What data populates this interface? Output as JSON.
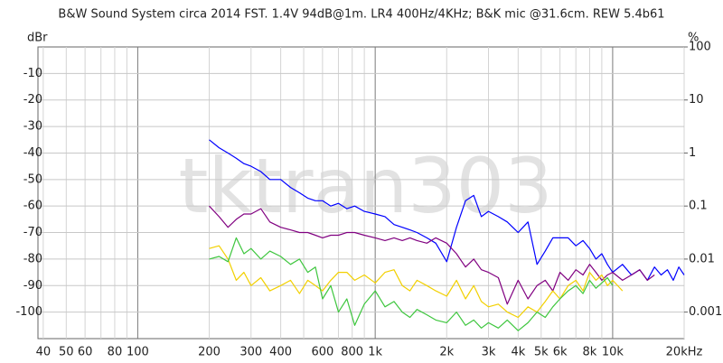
{
  "chart_data": {
    "type": "line",
    "title": "B&W Sound System circa 2014 FST. 1.4V 94dB@1m. LR4 400Hz/4KHz; B&K mic @31.6cm. REW 5.4b61",
    "watermark": "tktran303",
    "y_label": "dBr",
    "y2_label": "%",
    "x_scale": "log",
    "y2_scale": "log",
    "grid": true,
    "xlim": [
      38,
      20000
    ],
    "ylim": [
      -110,
      0
    ],
    "y2lim": [
      0.0003162,
      100
    ],
    "xticks": [
      40,
      50,
      60,
      80,
      100,
      200,
      300,
      400,
      600,
      800,
      {
        "value": 1000,
        "label": "1k"
      },
      {
        "value": 2000,
        "label": "2k"
      },
      {
        "value": 3000,
        "label": "3k"
      },
      {
        "value": 4000,
        "label": "4k"
      },
      {
        "value": 5000,
        "label": "5k"
      },
      {
        "value": 6000,
        "label": "6k"
      },
      {
        "value": 8000,
        "label": "8k"
      },
      {
        "value": 10000,
        "label": "10k"
      },
      {
        "value": 20000,
        "label": "20kHz"
      }
    ],
    "x_minor_grid": [
      70,
      90,
      500,
      700,
      900,
      7000,
      9000
    ],
    "yticks": [
      -10,
      -20,
      -30,
      -40,
      -50,
      -60,
      -70,
      -80,
      -90,
      -100
    ],
    "y2ticks": [
      100,
      10,
      1,
      0.1,
      0.01,
      0.001
    ],
    "x": [
      200,
      220,
      240,
      260,
      280,
      300,
      330,
      360,
      400,
      440,
      480,
      520,
      560,
      600,
      650,
      700,
      760,
      820,
      900,
      1000,
      1100,
      1200,
      1300,
      1400,
      1500,
      1650,
      1800,
      2000,
      2200,
      2400,
      2600,
      2800,
      3000,
      3300,
      3600,
      4000,
      4400,
      4800,
      5200,
      5600,
      6000,
      6500,
      7000,
      7500,
      8000,
      8500,
      9000,
      9500,
      10000,
      11000,
      12000,
      13000,
      14000,
      15000,
      16000,
      17000,
      18000,
      19000,
      20000
    ],
    "series": [
      {
        "color": "#0000ff",
        "values": [
          -35,
          -38,
          -40,
          -42,
          -44,
          -45,
          -47,
          -50,
          -50,
          -53,
          -55,
          -57,
          -58,
          -58,
          -60,
          -59,
          -61,
          -60,
          -62,
          -63,
          -64,
          -67,
          -68,
          -69,
          -70,
          -72,
          -74,
          -81,
          -68,
          -58,
          -56,
          -64,
          -62,
          -64,
          -66,
          -70,
          -66,
          -82,
          -77,
          -72,
          -72,
          -72,
          -75,
          -73,
          -76,
          -80,
          -78,
          -82,
          -85,
          -82,
          -86,
          -84,
          -88,
          -83,
          -86,
          -84,
          -88,
          -83,
          -86
        ]
      },
      {
        "color": "#800080",
        "values": [
          -60,
          -64,
          -68,
          -65,
          -63,
          -63,
          -61,
          -66,
          -68,
          -69,
          -70,
          -70,
          -71,
          -72,
          -71,
          -71,
          -70,
          -70,
          -71,
          -72,
          -73,
          -72,
          -73,
          -72,
          -73,
          -74,
          -72,
          -74,
          -78,
          -83,
          -80,
          -84,
          -85,
          -87,
          -97,
          -88,
          -95,
          -90,
          -88,
          -92,
          -85,
          -88,
          -84,
          -86,
          -82,
          -85,
          -88,
          -86,
          -85,
          -88,
          -86,
          -84,
          -88,
          -86,
          null,
          null,
          null,
          null,
          null
        ]
      },
      {
        "color": "#f2d000",
        "values": [
          -76,
          -75,
          -80,
          -88,
          -85,
          -90,
          -87,
          -92,
          -90,
          -88,
          -93,
          -88,
          -90,
          -92,
          -88,
          -85,
          -85,
          -88,
          -86,
          -89,
          -85,
          -84,
          -90,
          -92,
          -88,
          -90,
          -92,
          -94,
          -88,
          -95,
          -90,
          -96,
          -98,
          -97,
          -100,
          -102,
          -98,
          -100,
          -96,
          -92,
          -95,
          -90,
          -88,
          -92,
          -85,
          -88,
          -86,
          -90,
          -88,
          -92,
          null,
          null,
          null,
          null,
          null,
          null,
          null,
          null,
          null
        ]
      },
      {
        "color": "#3ec63e",
        "values": [
          -80,
          -79,
          -81,
          -72,
          -78,
          -76,
          -80,
          -77,
          -79,
          -82,
          -80,
          -85,
          -83,
          -95,
          -90,
          -100,
          -95,
          -105,
          -97,
          -92,
          -98,
          -96,
          -100,
          -102,
          -99,
          -101,
          -103,
          -104,
          -100,
          -105,
          -103,
          -106,
          -104,
          -106,
          -103,
          -107,
          -104,
          -100,
          -102,
          -98,
          -95,
          -92,
          -90,
          -93,
          -88,
          -91,
          -89,
          -87,
          -90,
          null,
          null,
          null,
          null,
          null,
          null,
          null,
          null,
          null,
          null
        ]
      }
    ]
  }
}
